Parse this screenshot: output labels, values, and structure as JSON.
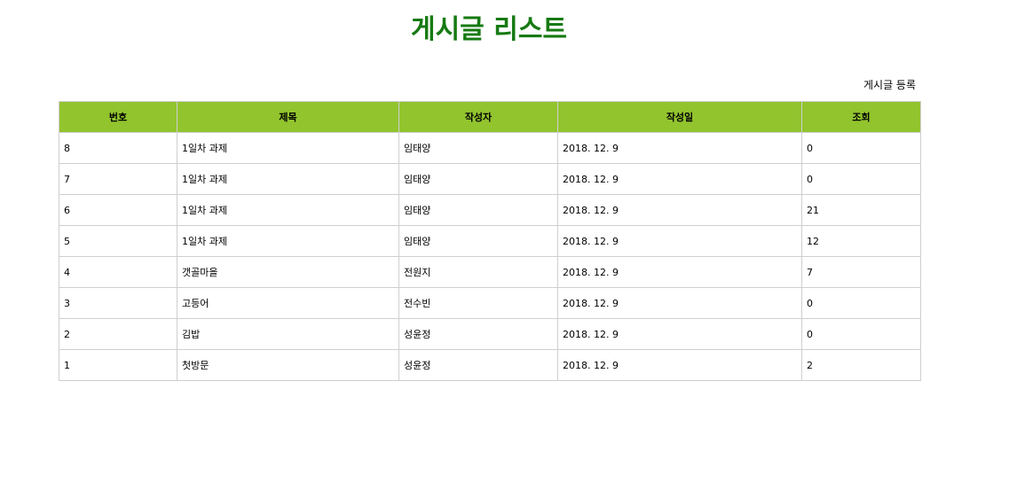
{
  "page": {
    "title": "게시글 리스트",
    "register_label": "게시글 등록"
  },
  "colors": {
    "title": "#167a12",
    "header_bg": "#92c42e",
    "border": "#cfcfcf"
  },
  "table": {
    "headers": [
      "번호",
      "제목",
      "작성자",
      "작성일",
      "조회"
    ],
    "rows": [
      {
        "no": "8",
        "title": "1일차 과제",
        "writer": "임태양",
        "date": "2018. 12. 9",
        "views": "0"
      },
      {
        "no": "7",
        "title": "1일차 과제",
        "writer": "임태양",
        "date": "2018. 12. 9",
        "views": "0"
      },
      {
        "no": "6",
        "title": "1일차 과제",
        "writer": "임태양",
        "date": "2018. 12. 9",
        "views": "21"
      },
      {
        "no": "5",
        "title": "1일차 과제",
        "writer": "임태양",
        "date": "2018. 12. 9",
        "views": "12"
      },
      {
        "no": "4",
        "title": "갯골마을",
        "writer": "전원지",
        "date": "2018. 12. 9",
        "views": "7"
      },
      {
        "no": "3",
        "title": "고등어",
        "writer": "전수빈",
        "date": "2018. 12. 9",
        "views": "0"
      },
      {
        "no": "2",
        "title": "김밥",
        "writer": "성윤정",
        "date": "2018. 12. 9",
        "views": "0"
      },
      {
        "no": "1",
        "title": "첫방문",
        "writer": "성윤정",
        "date": "2018. 12. 9",
        "views": "2"
      }
    ]
  }
}
